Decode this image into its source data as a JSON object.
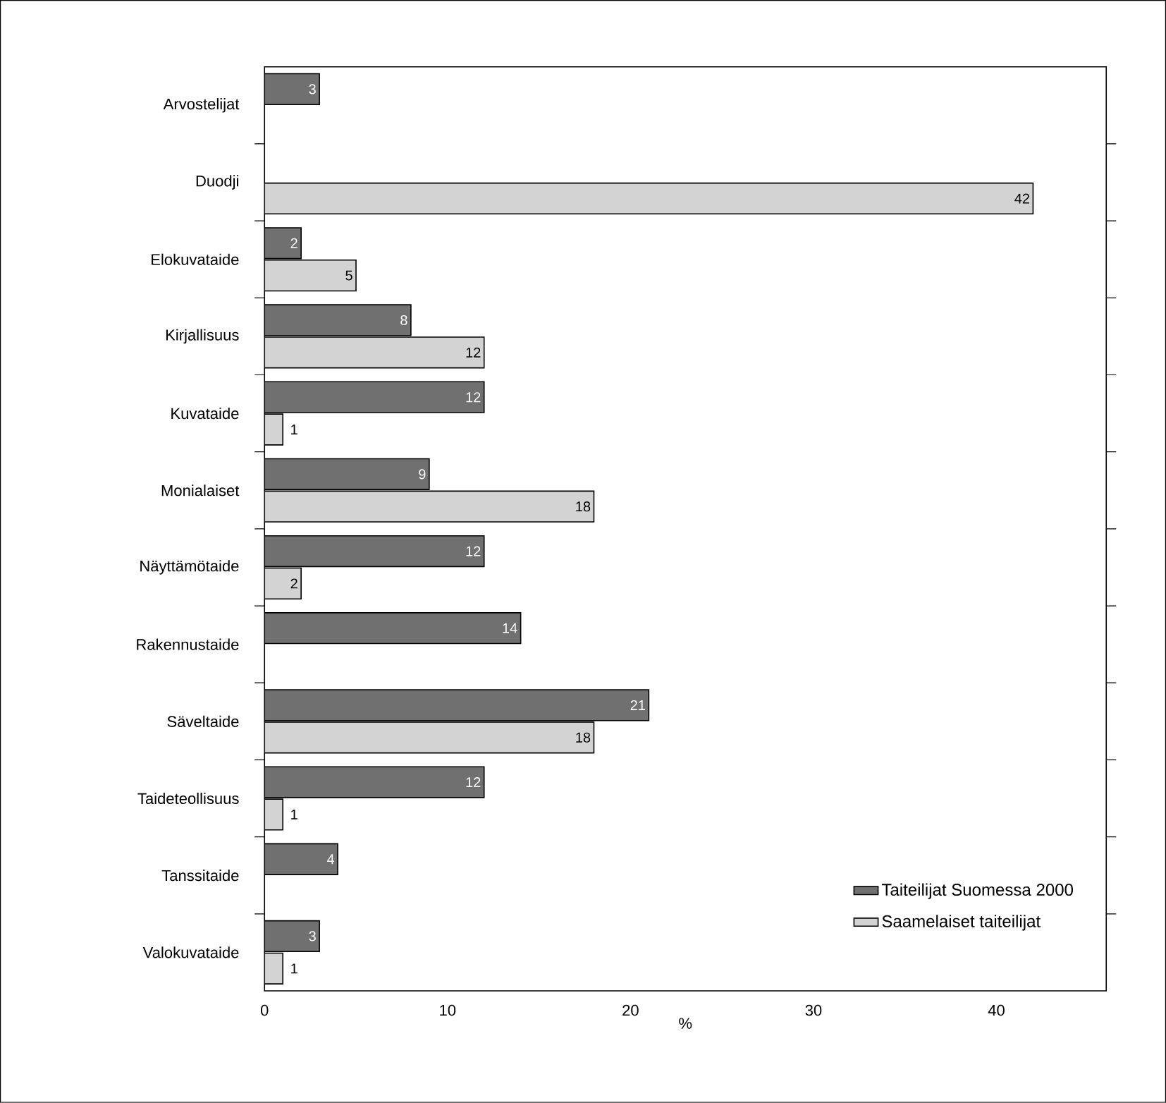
{
  "chart_data": {
    "type": "bar",
    "orientation": "horizontal",
    "xlabel": "%",
    "categories": [
      "Arvostelijat",
      "Duodji",
      "Elokuvataide",
      "Kirjallisuus",
      "Kuvataide",
      "Monialaiset",
      "Näyttämötaide",
      "Rakennustaide",
      "Säveltaide",
      "Taideteollisuus",
      "Tanssitaide",
      "Valokuvataide"
    ],
    "series": [
      {
        "name": "Taiteilijat Suomessa 2000",
        "color": "#707070",
        "values": [
          3,
          null,
          2,
          8,
          12,
          9,
          12,
          14,
          21,
          12,
          4,
          3
        ]
      },
      {
        "name": "Saamelaiset taiteilijat",
        "color": "#d3d3d3",
        "values": [
          null,
          42,
          5,
          12,
          1,
          18,
          2,
          null,
          18,
          1,
          null,
          1
        ]
      }
    ],
    "xlim": [
      0,
      46
    ],
    "xticks": [
      0,
      10,
      20,
      30,
      40
    ],
    "data_labels": true,
    "legend": "bottom right",
    "grid": false
  }
}
